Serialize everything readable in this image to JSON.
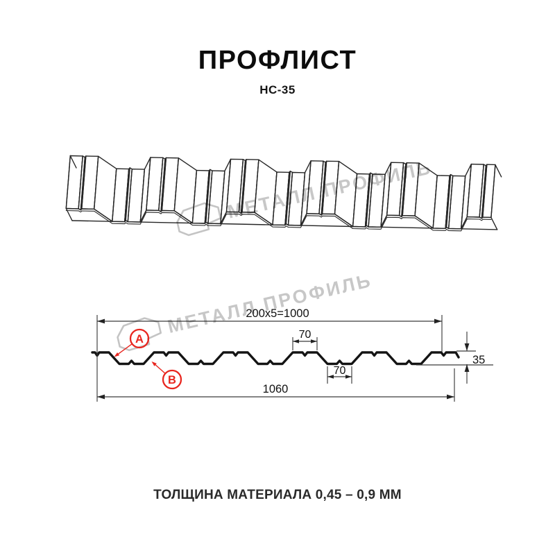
{
  "header": {
    "title": "ПРОФЛИСТ",
    "subtitle": "НС-35"
  },
  "watermarks": {
    "brand_text": "МЕТАЛЛ ПРОФИЛЬ"
  },
  "section_dimensions": {
    "working_width": "200x5=1000",
    "crest_width": "70",
    "trough_width": "70",
    "profile_height": "35",
    "overall_width": "1060",
    "label_a": "A",
    "label_b": "B"
  },
  "footer": {
    "thickness_note": "ТОЛЩИНА МАТЕРИАЛА 0,45 – 0,9 ММ"
  },
  "colors": {
    "accent_red": "#e8261f",
    "line_dark": "#141414",
    "dim_line": "#3a3a3a",
    "watermark_gray": "#c7c7c7"
  }
}
